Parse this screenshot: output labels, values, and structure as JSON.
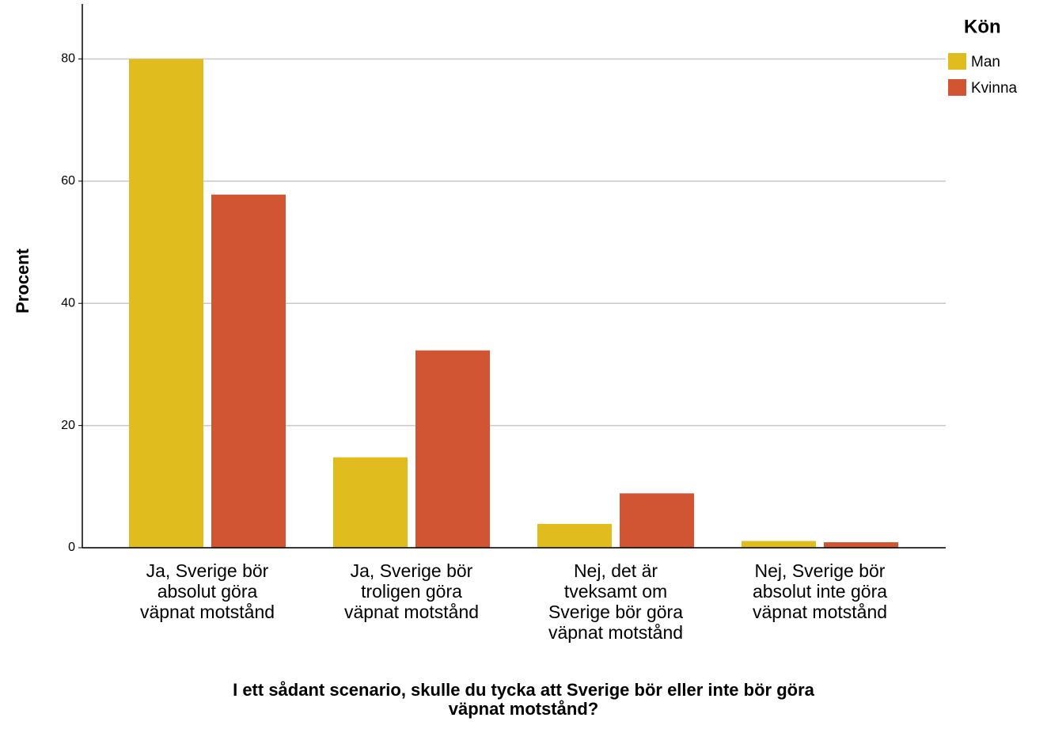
{
  "chart_data": {
    "type": "bar",
    "x_label": "I ett sådant scenario, skulle du tycka att Sverige bör eller inte bör göra\nväpnat motstånd?",
    "y_label": "Procent",
    "categories": [
      "Ja, Sverige bör\nabsolut göra\nväpnat motstånd",
      "Ja, Sverige bör\ntroligen göra\nväpnat motstånd",
      "Nej, det är\ntveksamt om\nSverige bör göra\nväpnat motstånd",
      "Nej, Sverige bör\nabsolut inte göra\nväpnat motstånd"
    ],
    "series": [
      {
        "name": "Man",
        "color": "#e1bc1e",
        "values": [
          80,
          14.8,
          3.9,
          1.1
        ]
      },
      {
        "name": "Kvinna",
        "color": "#d15433",
        "values": [
          57.8,
          32.3,
          8.9,
          0.9
        ]
      }
    ],
    "legend_title": "Kön",
    "ylim": [
      0,
      89
    ],
    "yticks": [
      0,
      20,
      40,
      60,
      80
    ],
    "grid": true,
    "legend": "right"
  }
}
